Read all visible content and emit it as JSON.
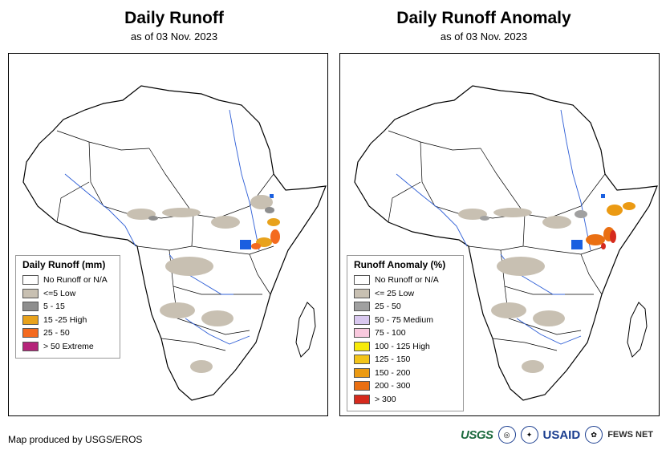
{
  "left": {
    "title": "Daily Runoff",
    "subtitle": "as of 03 Nov. 2023",
    "legend_title": "Daily Runoff (mm)",
    "legend": [
      {
        "label": "No Runoff or N/A",
        "color": "#ffffff"
      },
      {
        "label": "<=5 Low",
        "color": "#c8c0b2"
      },
      {
        "label": "5 - 15",
        "color": "#8e8e8e"
      },
      {
        "label": "15 -25 High",
        "color": "#e8a21c"
      },
      {
        "label": "25 - 50",
        "color": "#f46a1f"
      },
      {
        "label": "> 50 Extreme",
        "color": "#b5247a"
      }
    ]
  },
  "right": {
    "title": "Daily Runoff Anomaly",
    "subtitle": "as of 03 Nov. 2023",
    "legend_title": "Runoff Anomaly (%)",
    "legend": [
      {
        "label": "No Runoff or N/A",
        "color": "#ffffff"
      },
      {
        "label": "<= 25 Low",
        "color": "#c8c0b2"
      },
      {
        "label": "25 - 50",
        "color": "#a0a0a0"
      },
      {
        "label": "50 - 75 Medium",
        "color": "#d9c8ef"
      },
      {
        "label": "75 - 100",
        "color": "#f9c9de"
      },
      {
        "label": "100 - 125 High",
        "color": "#f7ea0a"
      },
      {
        "label": "125 - 150",
        "color": "#f3c419"
      },
      {
        "label": "150 - 200",
        "color": "#eb9a13"
      },
      {
        "label": "200 - 300",
        "color": "#ea6f12"
      },
      {
        "label": "> 300",
        "color": "#d62a1d"
      }
    ]
  },
  "footer": "Map produced by USGS/EROS",
  "logos": {
    "usgs": "USGS",
    "usaid": "USAID",
    "fews": "FEWS NET"
  }
}
